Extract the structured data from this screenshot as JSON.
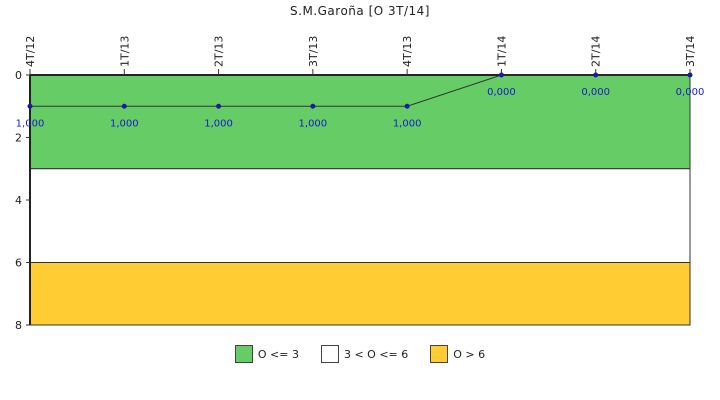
{
  "chart_data": {
    "type": "line",
    "title": "S.M.Garoña [O 3T/14]",
    "categories": [
      "4T/12",
      "1T/13",
      "2T/13",
      "3T/13",
      "4T/13",
      "1T/14",
      "2T/14",
      "3T/14"
    ],
    "series": [
      {
        "values": [
          1,
          1,
          1,
          1,
          1,
          0,
          0,
          0
        ],
        "data_labels": [
          "1,000",
          "1,000",
          "1,000",
          "1,000",
          "1,000",
          "0,000",
          "0,000",
          "0,000"
        ],
        "color": "#1a1aa6"
      }
    ],
    "ylim": [
      0,
      8
    ],
    "y_inverted": true,
    "yticks": [
      "0",
      "2",
      "4",
      "6",
      "8"
    ],
    "bands": [
      {
        "from": 0,
        "to": 3,
        "color": "#66cc66",
        "label": "O <= 3"
      },
      {
        "from": 3,
        "to": 6,
        "color": "#ffffff",
        "label": "3 < O <= 6"
      },
      {
        "from": 6,
        "to": 8,
        "color": "#ffcc33",
        "label": "O > 6"
      }
    ],
    "legend_position": "bottom"
  }
}
